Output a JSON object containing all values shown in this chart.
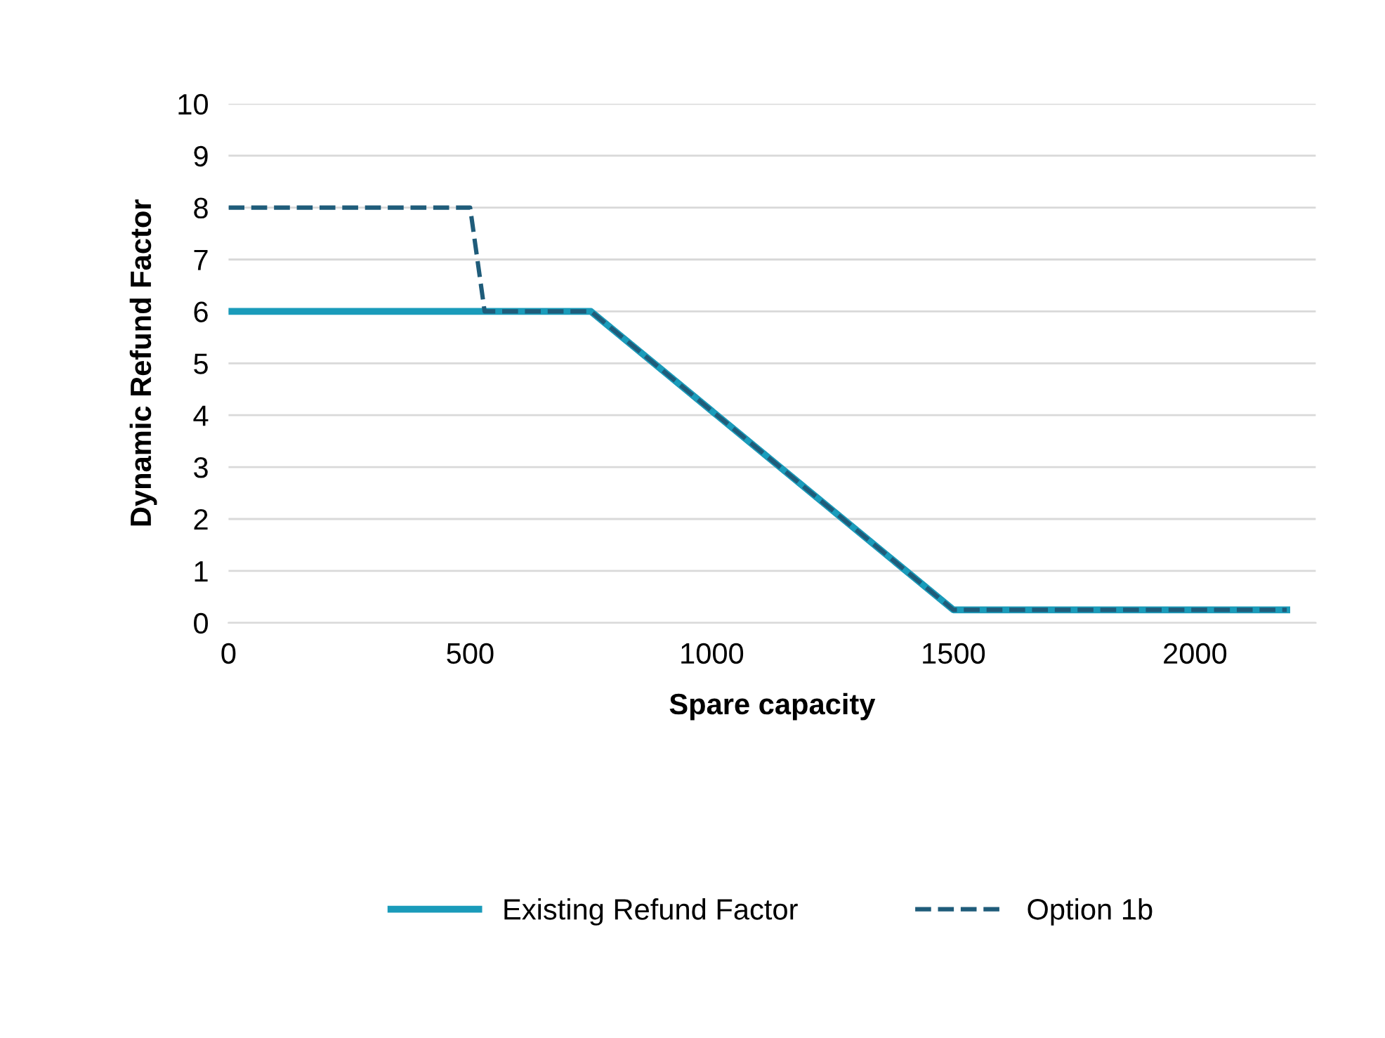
{
  "chart_data": {
    "type": "line",
    "xlabel": "Spare capacity",
    "ylabel": "Dynamic Refund Factor",
    "xlim": [
      0,
      2250
    ],
    "xticks": [
      0,
      500,
      1000,
      1500,
      2000
    ],
    "ylim": [
      0,
      10
    ],
    "yticks": [
      0,
      1,
      2,
      3,
      4,
      5,
      6,
      7,
      8,
      9,
      10
    ],
    "grid": "y",
    "legend": "bottom",
    "series": [
      {
        "name": "Existing Refund Factor",
        "color": "#1a9bba",
        "line_style": "solid",
        "x": [
          0,
          750,
          1500,
          2190
        ],
        "values": [
          6,
          6,
          0.25,
          0.25
        ]
      },
      {
        "name": "Option 1b",
        "color": "#1f5c7a",
        "line_style": "dashed",
        "x": [
          0,
          500,
          530,
          750,
          1500,
          2190
        ],
        "values": [
          8,
          8,
          6,
          6,
          0.25,
          0.25
        ]
      }
    ]
  }
}
